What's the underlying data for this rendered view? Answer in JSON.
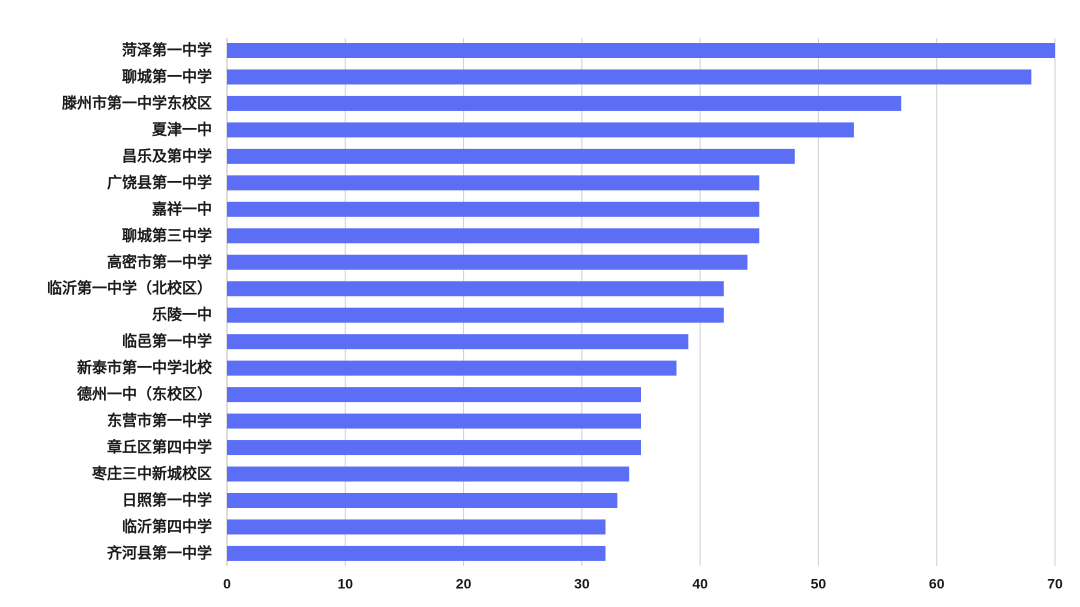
{
  "chart_data": {
    "type": "bar",
    "orientation": "horizontal",
    "title": "",
    "xlabel": "",
    "ylabel": "",
    "categories": [
      "菏泽第一中学",
      "聊城第一中学",
      "滕州市第一中学东校区",
      "夏津一中",
      "昌乐及第中学",
      "广饶县第一中学",
      "嘉祥一中",
      "聊城第三中学",
      "高密市第一中学",
      "临沂第一中学（北校区）",
      "乐陵一中",
      "临邑第一中学",
      "新泰市第一中学北校",
      "德州一中（东校区）",
      "东营市第一中学",
      "章丘区第四中学",
      "枣庄三中新城校区",
      "日照第一中学",
      "临沂第四中学",
      "齐河县第一中学"
    ],
    "values": [
      70,
      68,
      57,
      53,
      48,
      45,
      45,
      45,
      44,
      42,
      42,
      39,
      38,
      35,
      35,
      35,
      34,
      33,
      32,
      32
    ],
    "xlim": [
      0,
      70
    ],
    "xticks": [
      "0",
      "10",
      "20",
      "30",
      "40",
      "50",
      "60",
      "70"
    ],
    "grid": true,
    "legend": "none",
    "bar_color": "#5b6ef5"
  }
}
